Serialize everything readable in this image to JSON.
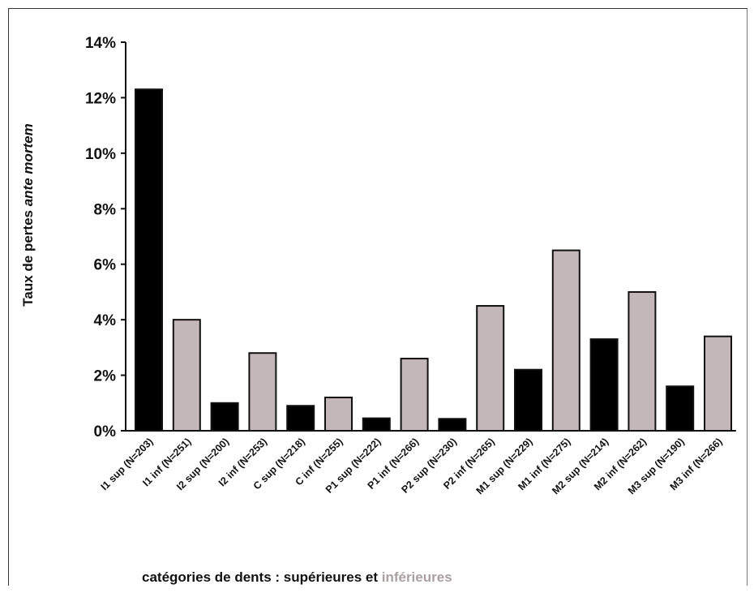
{
  "chart_data": {
    "type": "bar",
    "ylabel_parts": [
      "Taux de pertes ",
      "ante mortem"
    ],
    "xlabel_parts": [
      "catégories de dents : supérieures et ",
      "inférieures"
    ],
    "ylim": [
      0,
      14
    ],
    "y_ticks": [
      "0%",
      "2%",
      "4%",
      "6%",
      "8%",
      "10%",
      "12%",
      "14%"
    ],
    "y_tick_values": [
      0,
      2,
      4,
      6,
      8,
      10,
      12,
      14
    ],
    "categories": [
      "I1 sup (N=203)",
      "I1 inf (N=251)",
      "I2 sup (N=200)",
      "I2 inf (N=253)",
      "C sup (N=218)",
      "C inf (N=255)",
      "P1 sup (N=222)",
      "P1 inf (N=266)",
      "P2 sup (N=230)",
      "P2 inf (N=265)",
      "M1 sup (N=229)",
      "M1 inf (N=275)",
      "M2 sup (N=214)",
      "M2 inf (N=262)",
      "M3 sup (N=190)",
      "M3 inf (N=266)"
    ],
    "values": [
      12.3,
      4.0,
      1.0,
      2.8,
      0.9,
      1.2,
      0.45,
      2.6,
      0.43,
      4.5,
      2.2,
      6.5,
      3.3,
      5.0,
      1.6,
      3.4
    ],
    "groups": [
      "sup",
      "inf",
      "sup",
      "inf",
      "sup",
      "inf",
      "sup",
      "inf",
      "sup",
      "inf",
      "sup",
      "inf",
      "sup",
      "inf",
      "sup",
      "inf"
    ],
    "colors": {
      "sup": "#000000",
      "inf": "#c4b7b9",
      "outline": "#111111"
    },
    "grid": false
  }
}
